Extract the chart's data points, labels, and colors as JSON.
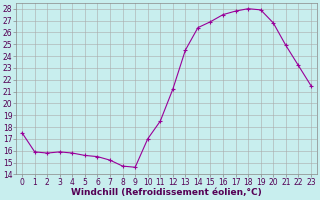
{
  "xlabel": "Windchill (Refroidissement éolien,°C)",
  "background_color": "#c8eeee",
  "line_color": "#990099",
  "marker_color": "#990099",
  "grid_color": "#aaaaaa",
  "ylim": [
    14,
    28.5
  ],
  "xlim": [
    -0.5,
    23.5
  ],
  "yticks": [
    14,
    15,
    16,
    17,
    18,
    19,
    20,
    21,
    22,
    23,
    24,
    25,
    26,
    27,
    28
  ],
  "xticks": [
    0,
    1,
    2,
    3,
    4,
    5,
    6,
    7,
    8,
    9,
    10,
    11,
    12,
    13,
    14,
    15,
    16,
    17,
    18,
    19,
    20,
    21,
    22,
    23
  ],
  "hours": [
    0,
    1,
    2,
    3,
    4,
    5,
    6,
    7,
    8,
    9,
    10,
    11,
    12,
    13,
    14,
    15,
    16,
    17,
    18,
    19,
    20,
    21,
    22,
    23
  ],
  "values": [
    17.5,
    15.9,
    15.8,
    15.9,
    15.8,
    15.6,
    15.5,
    15.2,
    14.7,
    14.6,
    17.0,
    18.5,
    21.2,
    24.5,
    26.4,
    26.9,
    27.5,
    27.8,
    28.0,
    27.9,
    26.8,
    24.9,
    23.2,
    21.5
  ],
  "tick_fontsize": 5.5,
  "axis_fontsize": 6.5
}
